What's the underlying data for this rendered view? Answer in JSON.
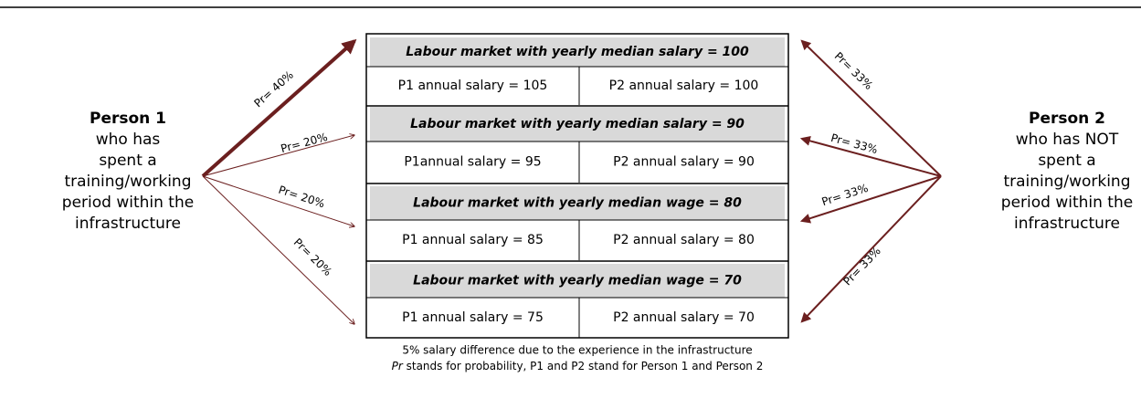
{
  "person1": {
    "name": "Person 1",
    "description": [
      "who has",
      "spent a",
      "training/working",
      "period within the",
      "infrastructure"
    ]
  },
  "person2": {
    "name": "Person 2",
    "description": [
      "who has NOT",
      "spent a",
      "training/working",
      "period within the",
      "infrastructure"
    ]
  },
  "markets": [
    {
      "title": "Labour market with yearly median salary = 100",
      "p1": "P1 annual salary = 105",
      "p2": "P2 annual salary = 100"
    },
    {
      "title": "Labour market with yearly median salary = 90",
      "p1": "P1annual salary = 95",
      "p2": "P2 annual salary = 90"
    },
    {
      "title": "Labour market  with yearly median wage = 80",
      "p1": "P1 annual salary = 85",
      "p2": "P2 annual salary = 80"
    },
    {
      "title": "Labour market  with yearly median wage = 70",
      "p1": "P1 annual salary = 75",
      "p2": "P2 annual salary = 70"
    }
  ],
  "left_probabilities": [
    "Pr= 40%",
    "Pr= 20%",
    "Pr= 20%",
    "Pr= 20%"
  ],
  "right_probabilities": [
    "Pr= 33%",
    "Pr= 33%",
    "Pr= 33%",
    "Pr= 33%"
  ],
  "notes": {
    "line1": "5% salary difference due to the experience in the infrastructure",
    "line2_term": "Pr",
    "line2_rest": " stands for probability, P1 and P2 stand for Person 1 and Person 2"
  }
}
